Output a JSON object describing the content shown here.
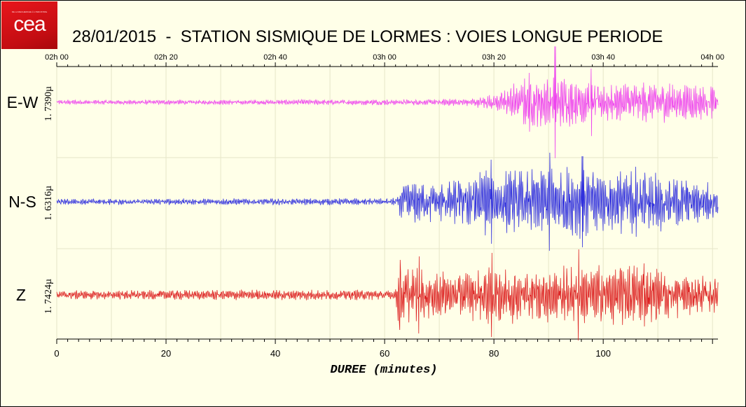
{
  "logo": {
    "text": "cea",
    "tagline": "DE LA RECHERCHE À L'INDUSTRIE"
  },
  "chart_data": {
    "type": "line",
    "title": "28/01/2015  -  STATION SISMIQUE DE LORMES : VOIES LONGUE PERIODE",
    "xlabel": "DUREE (minutes)",
    "xlim": [
      0,
      121
    ],
    "x_ticks": [
      0,
      20,
      40,
      60,
      80,
      100
    ],
    "top_axis_ticks": [
      "02h 00",
      "02h 20",
      "02h 40",
      "03h 00",
      "03h 20",
      "03h 40",
      "04h 00"
    ],
    "grid": true,
    "series": [
      {
        "name": "E-W",
        "scale_label": "1. 7390µ",
        "color": "#ee44ee",
        "envelope": [
          [
            0,
            0.08
          ],
          [
            30,
            0.08
          ],
          [
            70,
            0.1
          ],
          [
            76,
            0.14
          ],
          [
            81,
            0.3
          ],
          [
            83,
            0.55
          ],
          [
            86,
            0.8
          ],
          [
            90,
            0.85
          ],
          [
            95,
            0.75
          ],
          [
            100,
            0.7
          ],
          [
            110,
            0.65
          ],
          [
            121,
            0.55
          ]
        ],
        "peaks": [
          [
            91.2,
            1.9
          ],
          [
            86.5,
            1.0
          ],
          [
            97.8,
            1.15
          ]
        ]
      },
      {
        "name": "N-S",
        "scale_label": "1. 6316µ",
        "color": "#3030dd",
        "envelope": [
          [
            0,
            0.08
          ],
          [
            30,
            0.09
          ],
          [
            60,
            0.09
          ],
          [
            62.5,
            0.15
          ],
          [
            63,
            0.55
          ],
          [
            66,
            0.6
          ],
          [
            72,
            0.55
          ],
          [
            77,
            0.9
          ],
          [
            85,
            0.85
          ],
          [
            91,
            0.95
          ],
          [
            96,
            1.0
          ],
          [
            102,
            0.85
          ],
          [
            110,
            0.85
          ],
          [
            115,
            0.65
          ],
          [
            121,
            0.5
          ]
        ],
        "peaks": [
          [
            79.5,
            1.2
          ],
          [
            90.2,
            1.4
          ],
          [
            96.2,
            1.3
          ],
          [
            106,
            1.0
          ]
        ]
      },
      {
        "name": "Z",
        "scale_label": "1. 7424µ",
        "color": "#dd2222",
        "envelope": [
          [
            0,
            0.12
          ],
          [
            30,
            0.14
          ],
          [
            62,
            0.14
          ],
          [
            62.5,
            0.9
          ],
          [
            66,
            0.7
          ],
          [
            72,
            0.6
          ],
          [
            79,
            0.8
          ],
          [
            85,
            0.75
          ],
          [
            95,
            0.8
          ],
          [
            105,
            0.85
          ],
          [
            110,
            0.75
          ],
          [
            121,
            0.45
          ]
        ],
        "peaks": [
          [
            62.8,
            1.0
          ],
          [
            66.3,
            1.1
          ],
          [
            79.6,
            1.2
          ],
          [
            95.5,
            1.3
          ],
          [
            107.5,
            0.9
          ]
        ]
      }
    ]
  }
}
